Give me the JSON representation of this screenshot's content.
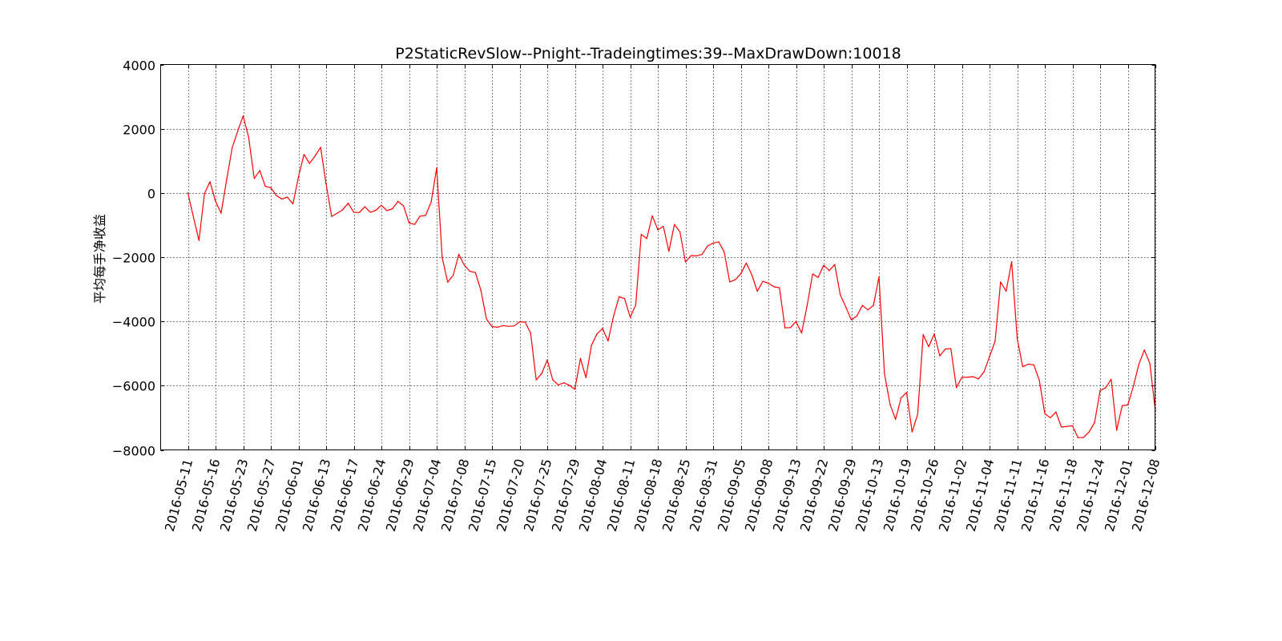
{
  "chart_data": {
    "type": "line",
    "title": "P2StaticRevSlow--Pnight--Tradeingtimes:39--MaxDrawDown:10018",
    "xlabel": "",
    "ylabel": "平均每手净收益",
    "ylim": [
      -8000,
      4000
    ],
    "yticks": [
      4000,
      2000,
      0,
      -2000,
      -4000,
      -6000,
      -8000
    ],
    "ytick_labels": [
      "4000",
      "2000",
      "0",
      "−2000",
      "−4000",
      "−6000",
      "−8000"
    ],
    "xtick_labels": [
      "2016-05-11",
      "2016-05-16",
      "2016-05-23",
      "2016-05-27",
      "2016-06-01",
      "2016-06-13",
      "2016-06-17",
      "2016-06-24",
      "2016-06-29",
      "2016-07-04",
      "2016-07-08",
      "2016-07-15",
      "2016-07-20",
      "2016-07-25",
      "2016-07-29",
      "2016-08-04",
      "2016-08-11",
      "2016-08-18",
      "2016-08-25",
      "2016-08-31",
      "2016-09-05",
      "2016-09-08",
      "2016-09-13",
      "2016-09-22",
      "2016-09-29",
      "2016-10-13",
      "2016-10-19",
      "2016-10-26",
      "2016-11-02",
      "2016-11-04",
      "2016-11-11",
      "2016-11-16",
      "2016-11-18",
      "2016-11-24",
      "2016-12-01",
      "2016-12-08"
    ],
    "tick_every": 5,
    "grid": true,
    "color": "#ff0000",
    "series": [
      {
        "values": [
          0,
          -750,
          -1480,
          -20,
          350,
          -260,
          -630,
          400,
          1400,
          1920,
          2400,
          1720,
          450,
          700,
          210,
          160,
          -80,
          -190,
          -130,
          -340,
          500,
          1200,
          920,
          1150,
          1420,
          280,
          -730,
          -630,
          -520,
          -320,
          -600,
          -610,
          -430,
          -600,
          -540,
          -380,
          -550,
          -490,
          -260,
          -400,
          -930,
          -980,
          -720,
          -700,
          -280,
          780,
          -2020,
          -2780,
          -2560,
          -1910,
          -2250,
          -2440,
          -2480,
          -3030,
          -3920,
          -4160,
          -4180,
          -4130,
          -4150,
          -4140,
          -4010,
          -4020,
          -4370,
          -5820,
          -5620,
          -5200,
          -5820,
          -5980,
          -5910,
          -5990,
          -6110,
          -5150,
          -5750,
          -4740,
          -4390,
          -4220,
          -4610,
          -3830,
          -3230,
          -3290,
          -3870,
          -3490,
          -1290,
          -1420,
          -710,
          -1150,
          -1040,
          -1820,
          -980,
          -1210,
          -2150,
          -1950,
          -1960,
          -1910,
          -1650,
          -1560,
          -1520,
          -1830,
          -2770,
          -2700,
          -2520,
          -2180,
          -2550,
          -3060,
          -2750,
          -2810,
          -2920,
          -2950,
          -4200,
          -4190,
          -4000,
          -4360,
          -3510,
          -2520,
          -2630,
          -2250,
          -2420,
          -2230,
          -3170,
          -3550,
          -3950,
          -3830,
          -3500,
          -3640,
          -3500,
          -2610,
          -5630,
          -6580,
          -7050,
          -6380,
          -6210,
          -7440,
          -6890,
          -4410,
          -4790,
          -4390,
          -5070,
          -4860,
          -4850,
          -6060,
          -5740,
          -5740,
          -5720,
          -5790,
          -5570,
          -5090,
          -4620,
          -2770,
          -3060,
          -2140,
          -4530,
          -5410,
          -5330,
          -5350,
          -5830,
          -6870,
          -7000,
          -6820,
          -7290,
          -7270,
          -7250,
          -7620,
          -7610,
          -7440,
          -7150,
          -6150,
          -6070,
          -5800,
          -7390,
          -6620,
          -6600,
          -6030,
          -5340,
          -4890,
          -5310,
          -6800
        ]
      }
    ]
  }
}
